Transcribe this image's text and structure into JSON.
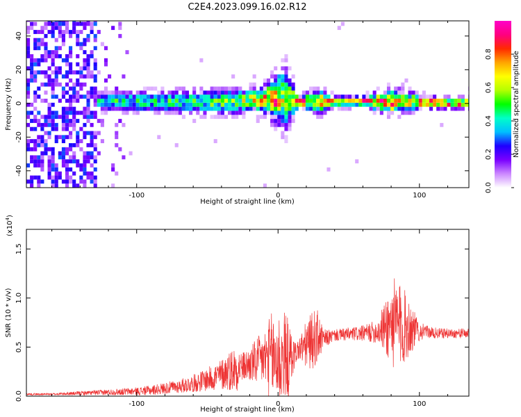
{
  "title": "C2E4.2023.099.16.02.R12",
  "chart_data": [
    {
      "type": "heatmap",
      "xlabel": "Height of straight line (km)",
      "ylabel": "Frequency (Hz)",
      "xlim": [
        -178,
        135
      ],
      "ylim": [
        -50,
        49
      ],
      "xticks": [
        -100,
        0,
        100
      ],
      "xtick_labels": [
        "-100",
        "0",
        "100"
      ],
      "yticks": [
        -40,
        -20,
        0,
        20,
        40
      ],
      "ytick_labels": [
        "-40",
        "-20",
        "0",
        "20",
        "40"
      ],
      "band": {
        "x": [
          -178,
          -150,
          -130,
          -129,
          -110,
          -80,
          -50,
          -30,
          -20,
          -10,
          0,
          5,
          10,
          14,
          20,
          30,
          40,
          60,
          80,
          90,
          100,
          120,
          135
        ],
        "center": [
          0,
          0,
          0,
          1,
          1,
          1,
          1,
          1,
          2,
          2,
          3,
          3,
          2,
          1,
          1,
          1,
          1,
          1,
          1,
          1,
          1,
          0,
          0
        ],
        "halfwidth": [
          0,
          0,
          0,
          6,
          7,
          8,
          9,
          9,
          8,
          10,
          18,
          24,
          15,
          4,
          6,
          9,
          4,
          4,
          9,
          8,
          5,
          4,
          4
        ],
        "peak": [
          0.15,
          0.2,
          0.2,
          0.45,
          0.5,
          0.5,
          0.55,
          0.6,
          0.7,
          0.85,
          0.9,
          0.6,
          0.65,
          0.95,
          0.9,
          0.8,
          0.75,
          0.85,
          0.95,
          0.7,
          0.95,
          0.9,
          0.9
        ]
      },
      "noise_region_x": [
        -178,
        -128
      ],
      "colorbar": {
        "label": "Normalized spectral amplitude",
        "range": [
          0.0,
          1.0
        ],
        "ticks": [
          0.0,
          0.2,
          0.4,
          0.6,
          0.8
        ],
        "tick_labels": [
          "0.0",
          "0.2",
          "0.4",
          "0.6",
          "0.8"
        ],
        "colors": [
          "#ffffff",
          "#cc88ff",
          "#7a00ff",
          "#1e00ff",
          "#00bfff",
          "#00ffc8",
          "#00ff00",
          "#b4ff00",
          "#ffff00",
          "#ffa500",
          "#ff2a00",
          "#ff0080",
          "#ff00c8"
        ]
      }
    },
    {
      "type": "line",
      "xlabel": "Height of straight line (km)",
      "ylabel": "SNR (10 * v/v)",
      "y_multiplier": "(x10",
      "y_multiplier_exp": "4",
      "y_multiplier_close": ")",
      "xlim": [
        -178,
        135
      ],
      "ylim": [
        0,
        1.7
      ],
      "xticks": [
        -100,
        0,
        100
      ],
      "xtick_labels": [
        "-100",
        "0",
        "100"
      ],
      "yticks": [
        0.0,
        0.5,
        1.0,
        1.5
      ],
      "ytick_labels": [
        "0.0",
        "0.5",
        "1.0",
        "1.5"
      ],
      "series": [
        {
          "color": "#ee3333",
          "x": [
            -178,
            -160,
            -140,
            -120,
            -100,
            -90,
            -80,
            -70,
            -60,
            -50,
            -40,
            -35,
            -30,
            -25,
            -20,
            -15,
            -10,
            -5,
            0,
            3,
            6,
            9,
            12,
            15,
            20,
            25,
            28,
            32,
            36,
            40,
            50,
            60,
            70,
            75,
            80,
            85,
            88,
            92,
            96,
            100,
            105,
            110,
            120,
            135
          ],
          "y": [
            0.02,
            0.02,
            0.03,
            0.04,
            0.05,
            0.06,
            0.08,
            0.1,
            0.13,
            0.17,
            0.22,
            0.26,
            0.28,
            0.3,
            0.32,
            0.35,
            0.38,
            0.4,
            0.38,
            0.36,
            0.35,
            0.38,
            0.44,
            0.48,
            0.52,
            0.58,
            0.6,
            0.58,
            0.6,
            0.62,
            0.63,
            0.64,
            0.66,
            0.7,
            0.74,
            0.72,
            0.7,
            0.72,
            0.68,
            0.66,
            0.66,
            0.64,
            0.64,
            0.64
          ],
          "amp": [
            0.01,
            0.01,
            0.02,
            0.03,
            0.04,
            0.05,
            0.06,
            0.07,
            0.09,
            0.12,
            0.16,
            0.2,
            0.25,
            0.15,
            0.18,
            0.25,
            0.28,
            0.45,
            0.5,
            0.55,
            0.5,
            0.3,
            0.12,
            0.12,
            0.25,
            0.3,
            0.28,
            0.1,
            0.08,
            0.06,
            0.07,
            0.08,
            0.12,
            0.25,
            0.45,
            0.5,
            0.4,
            0.35,
            0.2,
            0.1,
            0.06,
            0.06,
            0.05,
            0.05
          ]
        }
      ]
    }
  ]
}
